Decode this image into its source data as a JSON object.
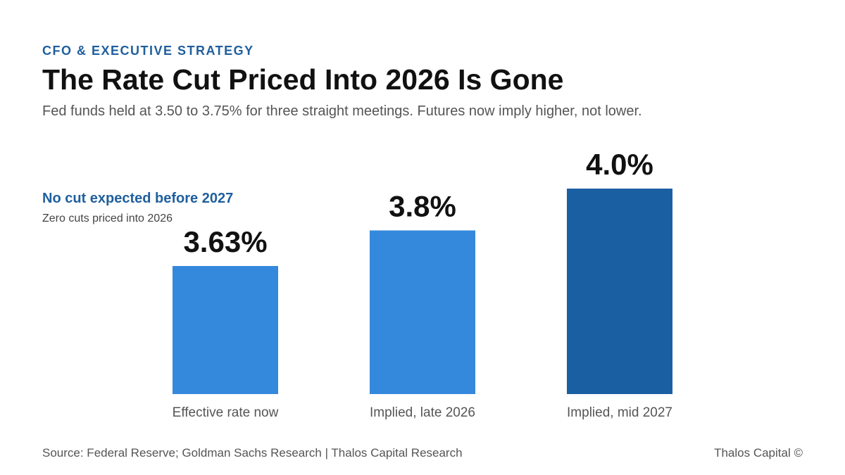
{
  "header": {
    "kicker": "CFO & EXECUTIVE STRATEGY",
    "title": "The Rate Cut Priced Into 2026 Is Gone",
    "subtitle": "Fed funds held at 3.50 to 3.75% for three straight meetings. Futures now imply higher, not lower."
  },
  "annotation": {
    "title": "No cut expected before 2027",
    "subtitle": "Zero cuts priced into 2026"
  },
  "chart_data": {
    "type": "bar",
    "categories": [
      "Effective rate now",
      "Implied, late 2026",
      "Implied, mid 2027"
    ],
    "values": [
      3.63,
      3.8,
      4.0
    ],
    "data_labels": [
      "3.63%",
      "3.8%",
      "4.0%"
    ],
    "bar_colors": [
      "#3589dc",
      "#3589dc",
      "#1b5fa3"
    ],
    "value_label_color": "#111111",
    "category_label_color": "#555555",
    "title": "",
    "xlabel": "",
    "ylabel": "",
    "ylim": [
      3.0,
      4.0
    ],
    "grid": false
  },
  "footer": {
    "source": "Source: Federal Reserve; Goldman Sachs Research | Thalos Capital Research",
    "brand": "Thalos Capital ©"
  },
  "colors": {
    "accent": "#1f5f9e",
    "bar_light": "#3589dc",
    "bar_dark": "#1b5fa3"
  }
}
